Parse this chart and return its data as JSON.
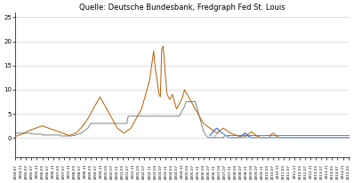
{
  "title": "Quelle: Deutsche Bundesbank, Fredgraph Fed St. Louis",
  "title_fontsize": 6,
  "background_color": "#ffffff",
  "ylim": [
    -4,
    26
  ],
  "yticks": [
    0,
    5,
    10,
    15,
    20,
    25
  ],
  "line_colors": {
    "orange": "#b85c00",
    "gray": "#808080",
    "blue": "#4472c4",
    "light_blue": "#9dc3e6"
  },
  "grid_color": "#d0d0d0",
  "n_points": 250
}
